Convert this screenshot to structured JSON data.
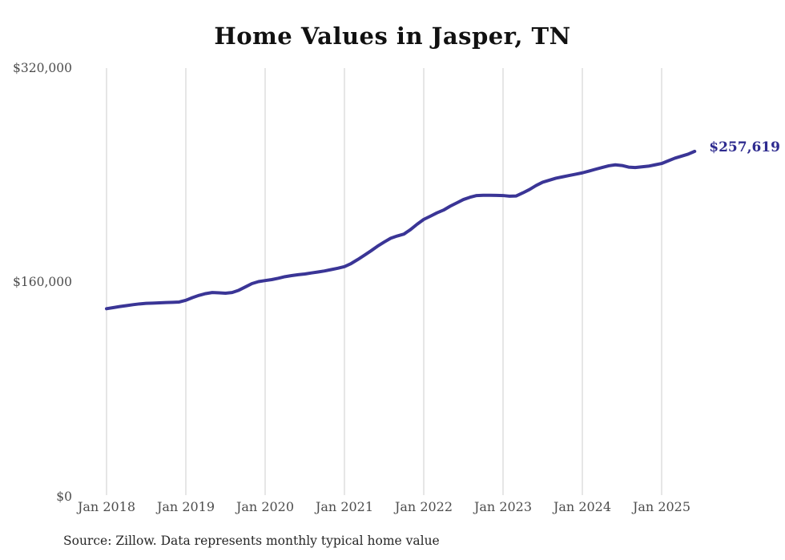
{
  "title": "Home Values in Jasper, TN",
  "end_label": "$257,619",
  "source_note": "Source: Zillow. Data represents monthly typical home value",
  "colors": {
    "background": "#ffffff",
    "title": "#111111",
    "line": "#3a3596",
    "end_label": "#2e2b8f",
    "gridline": "#cccccc",
    "axis_label": "#4d4d4d"
  },
  "chart_data": {
    "type": "line",
    "title": "Home Values in Jasper, TN",
    "xlabel": "",
    "ylabel": "",
    "ylim": [
      0,
      320000
    ],
    "y_ticks": [
      0,
      160000,
      320000
    ],
    "y_tick_labels": [
      "$0",
      "$160,000",
      "$320,000"
    ],
    "x_tick_labels": [
      "Jan 2018",
      "Jan 2019",
      "Jan 2020",
      "Jan 2021",
      "Jan 2022",
      "Jan 2023",
      "Jan 2024",
      "Jan 2025"
    ],
    "x_tick_month_indices": [
      0,
      12,
      24,
      36,
      48,
      60,
      72,
      84
    ],
    "x_start": "2018-01",
    "x_end": "2025-06",
    "x_unit": "month",
    "grid": "vertical-only",
    "legend": "none",
    "final_value": 257619,
    "final_value_label": "$257,619",
    "series": [
      {
        "name": "Monthly typical home value",
        "values": [
          139700,
          140500,
          141300,
          142000,
          142700,
          143300,
          143700,
          143900,
          144100,
          144300,
          144500,
          144700,
          146000,
          148000,
          149700,
          151000,
          151800,
          151600,
          151300,
          151800,
          153500,
          156000,
          158500,
          160000,
          160800,
          161500,
          162500,
          163700,
          164500,
          165200,
          165700,
          166500,
          167200,
          168000,
          169000,
          170000,
          171200,
          173500,
          176500,
          179700,
          183000,
          186500,
          189600,
          192500,
          194200,
          195600,
          199000,
          203000,
          206600,
          209000,
          211500,
          213600,
          216500,
          219000,
          221500,
          223200,
          224500,
          224700,
          224700,
          224600,
          224500,
          224000,
          224200,
          226500,
          229000,
          232000,
          234500,
          236000,
          237500,
          238500,
          239500,
          240500,
          241500,
          242800,
          244200,
          245500,
          246800,
          247500,
          247000,
          245800,
          245500,
          246000,
          246500,
          247500,
          248500,
          250500,
          252500,
          254000,
          255500,
          257619
        ]
      }
    ]
  }
}
